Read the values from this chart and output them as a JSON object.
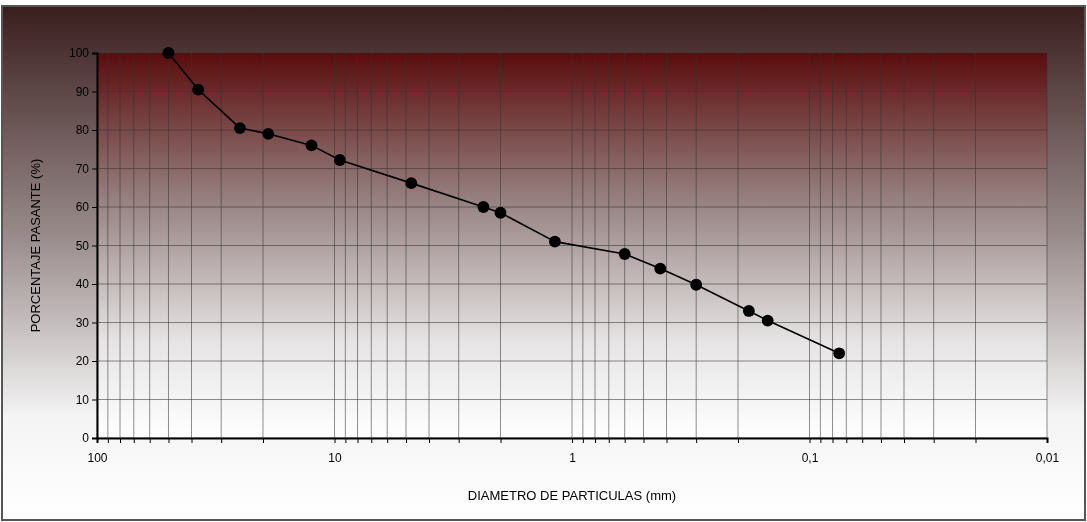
{
  "chart_data": {
    "type": "line",
    "xlabel": "DIAMETRO DE PARTICULAS (mm)",
    "ylabel": "PORCENTAJE  PASANTE (%)",
    "log": "x",
    "grid": true,
    "marker": "circle",
    "line_style": "solid",
    "xlim": [
      100,
      0.01
    ],
    "ylim": [
      0,
      100
    ],
    "xticks": [
      100,
      {
        "value": 90,
        "label": null
      },
      {
        "value": 80,
        "label": null
      },
      {
        "value": 70,
        "label": null
      },
      {
        "value": 60,
        "label": null
      },
      {
        "value": 50,
        "label": null
      },
      {
        "value": 40,
        "label": null
      },
      {
        "value": 30,
        "label": null
      },
      {
        "value": 20,
        "label": null
      },
      10,
      {
        "value": 9,
        "label": null
      },
      {
        "value": 8,
        "label": null
      },
      {
        "value": 7,
        "label": null
      },
      {
        "value": 6,
        "label": null
      },
      {
        "value": 5,
        "label": null
      },
      {
        "value": 4,
        "label": null
      },
      {
        "value": 3,
        "label": null
      },
      {
        "value": 2,
        "label": null
      },
      1,
      {
        "value": 0.9,
        "label": null
      },
      {
        "value": 0.8,
        "label": null
      },
      {
        "value": 0.7,
        "label": null
      },
      {
        "value": 0.6,
        "label": null
      },
      {
        "value": 0.5,
        "label": null
      },
      {
        "value": 0.4,
        "label": null
      },
      {
        "value": 0.3,
        "label": null
      },
      {
        "value": 0.2,
        "label": null
      },
      {
        "value": 0.1,
        "label": "0,1"
      },
      {
        "value": 0.09,
        "label": null
      },
      {
        "value": 0.08,
        "label": null
      },
      {
        "value": 0.07,
        "label": null
      },
      {
        "value": 0.06,
        "label": null
      },
      {
        "value": 0.05,
        "label": null
      },
      {
        "value": 0.04,
        "label": null
      },
      {
        "value": 0.03,
        "label": null
      },
      {
        "value": 0.02,
        "label": null
      },
      {
        "value": 0.01,
        "label": "0,01"
      }
    ],
    "yticks": [
      0,
      10,
      20,
      30,
      40,
      50,
      60,
      70,
      80,
      90,
      100
    ],
    "x": [
      50,
      37.5,
      25,
      19,
      12.5,
      9.5,
      4.75,
      2.36,
      2,
      1.18,
      0.6,
      0.425,
      0.3,
      0.18,
      0.15,
      0.075
    ],
    "series": [
      {
        "color": "#000000",
        "values": [
          100,
          90.5,
          80.5,
          79,
          76,
          72.2,
          66.2,
          60,
          58.5,
          51,
          47.8,
          44,
          39.8,
          33,
          30.5,
          22
        ]
      }
    ]
  }
}
